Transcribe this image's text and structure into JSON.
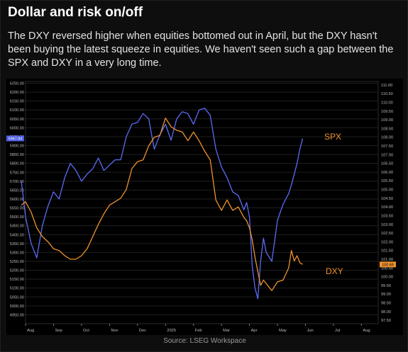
{
  "title": "Dollar and risk on/off",
  "subtitle": "The DXY reversed higher when equities bottomed out in April, but the DXY hasn't been buying the latest squeeze in equities. We haven't seen such a gap between the SPX and DXY in a very long time.",
  "source": "Source: LSEG Workspace",
  "chart_data": {
    "type": "line",
    "x_ticks": [
      "Aug",
      "Sep",
      "Oct",
      "Nov",
      "Dec",
      "2025",
      "Feb",
      "Mar",
      "Apr",
      "May",
      "Jun",
      "Jul",
      "Aug"
    ],
    "x_range": [
      0,
      12.6
    ],
    "left_axis": {
      "ylim": [
        4900,
        6260
      ],
      "ticks": [
        "4950.00",
        "5000.00",
        "5050.00",
        "5100.00",
        "5150.00",
        "5200.00",
        "5250.00",
        "5300.00",
        "5350.00",
        "5400.00",
        "5450.00",
        "5500.00",
        "5550.00",
        "5600.00",
        "5650.00",
        "5700.00",
        "5750.00",
        "5800.00",
        "5850.00",
        "5900.00",
        "5950.00",
        "6000.00",
        "6050.00",
        "6100.00",
        "6150.00",
        "6200.00",
        "6250.00"
      ],
      "last_value_label": "5967.84"
    },
    "right_axis": {
      "ylim": [
        97.3,
        111.2
      ],
      "ticks": [
        "97.50",
        "98.00",
        "98.50",
        "99.00",
        "99.50",
        "100.00",
        "100.50",
        "101.00",
        "101.50",
        "102.00",
        "102.50",
        "103.00",
        "103.50",
        "104.00",
        "104.50",
        "105.00",
        "105.50",
        "106.00",
        "106.50",
        "107.00",
        "107.50",
        "108.00",
        "108.50",
        "109.00",
        "109.50",
        "110.00",
        "110.50",
        "111.00"
      ],
      "last_value_label": "100.69"
    },
    "series": [
      {
        "name": "SPX",
        "axis": "left",
        "color": "#5b6bf5",
        "x": [
          -0.15,
          0.0,
          0.2,
          0.4,
          0.6,
          0.8,
          1.0,
          1.2,
          1.4,
          1.6,
          1.8,
          2.0,
          2.2,
          2.4,
          2.6,
          2.8,
          3.0,
          3.2,
          3.4,
          3.6,
          3.8,
          4.0,
          4.2,
          4.4,
          4.6,
          4.8,
          5.0,
          5.2,
          5.4,
          5.6,
          5.8,
          6.0,
          6.2,
          6.4,
          6.6,
          6.8,
          7.0,
          7.2,
          7.4,
          7.6,
          7.8,
          7.9,
          8.0,
          8.1,
          8.2,
          8.3,
          8.4,
          8.5,
          8.6,
          8.8,
          9.0,
          9.2,
          9.4,
          9.5,
          9.6,
          9.7,
          9.8,
          9.9
        ],
        "y": [
          5700,
          5500,
          5350,
          5270,
          5450,
          5560,
          5640,
          5600,
          5720,
          5800,
          5760,
          5700,
          5740,
          5770,
          5830,
          5760,
          5790,
          5820,
          5820,
          5950,
          6020,
          6030,
          6080,
          6050,
          5880,
          5960,
          6020,
          5930,
          6050,
          6090,
          6080,
          6020,
          6100,
          6110,
          6070,
          5880,
          5780,
          5720,
          5640,
          5620,
          5540,
          5580,
          5500,
          5220,
          5100,
          5040,
          5250,
          5380,
          5300,
          5250,
          5480,
          5570,
          5630,
          5680,
          5740,
          5800,
          5880,
          5940
        ]
      },
      {
        "name": "DXY",
        "axis": "right",
        "color": "#f0922e",
        "x": [
          -0.15,
          0.0,
          0.2,
          0.4,
          0.6,
          0.8,
          1.0,
          1.2,
          1.4,
          1.6,
          1.8,
          2.0,
          2.2,
          2.4,
          2.6,
          2.8,
          3.0,
          3.2,
          3.4,
          3.6,
          3.8,
          4.0,
          4.2,
          4.4,
          4.6,
          4.8,
          5.0,
          5.2,
          5.4,
          5.6,
          5.8,
          6.0,
          6.2,
          6.4,
          6.6,
          6.8,
          7.0,
          7.2,
          7.4,
          7.6,
          7.8,
          7.9,
          8.0,
          8.1,
          8.2,
          8.3,
          8.4,
          8.5,
          8.6,
          8.8,
          9.0,
          9.2,
          9.4,
          9.5,
          9.6,
          9.7,
          9.8,
          9.9
        ],
        "y": [
          104.1,
          104.3,
          103.7,
          102.8,
          102.3,
          102.0,
          101.6,
          101.5,
          101.2,
          101.0,
          101.0,
          101.2,
          101.6,
          102.3,
          103.0,
          103.6,
          104.1,
          104.3,
          104.5,
          105.0,
          106.2,
          106.6,
          106.7,
          107.5,
          108.0,
          108.1,
          109.1,
          108.6,
          108.4,
          108.3,
          107.8,
          108.3,
          107.8,
          107.2,
          106.7,
          104.4,
          103.8,
          104.4,
          103.8,
          104.0,
          103.4,
          103.2,
          102.8,
          102.1,
          101.1,
          100.3,
          99.5,
          99.8,
          99.6,
          99.2,
          99.7,
          99.8,
          100.5,
          101.5,
          100.9,
          101.2,
          100.8,
          100.7
        ]
      }
    ],
    "annotations": [
      {
        "text": "SPX",
        "color": "#f0922e"
      },
      {
        "text": "DXY",
        "color": "#f0922e"
      }
    ]
  }
}
